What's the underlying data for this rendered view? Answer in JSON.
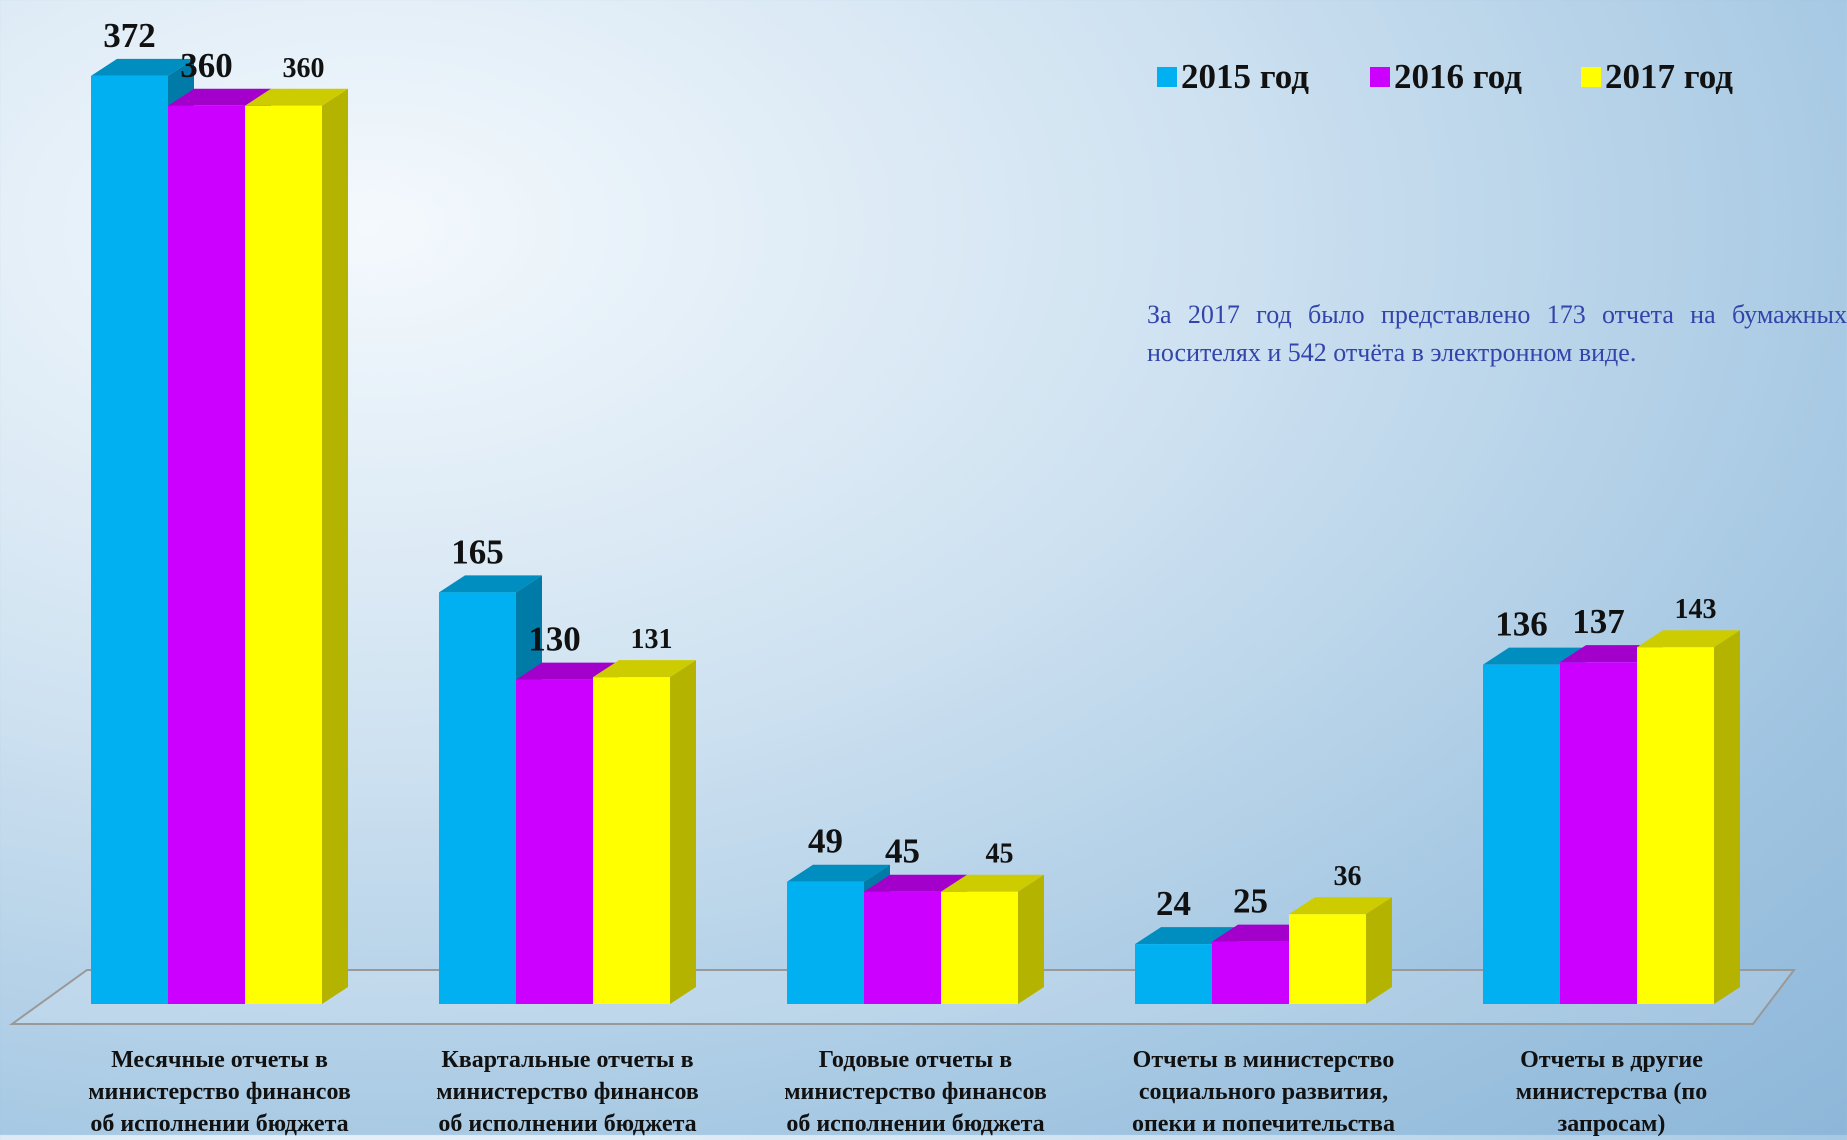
{
  "chart_data": {
    "type": "bar3d",
    "categories": [
      "Месячные отчеты в\nминистерство финансов\nоб исполнении бюджета",
      "Квартальные отчеты в\nминистерство финансов\nоб исполнении бюджета",
      "Годовые  отчеты в\nминистерство финансов\nоб исполнении бюджета",
      "Отчеты в министерство\nсоциального развития,\nопеки и попечительства",
      "Отчеты в другие\nминистерства (по\nзапросам)"
    ],
    "series": [
      {
        "name": "2015 год",
        "color": "#00b0f0",
        "values": [
          372,
          165,
          49,
          24,
          136
        ]
      },
      {
        "name": "2016 год",
        "color": "#cc00ff",
        "values": [
          360,
          130,
          45,
          25,
          137
        ]
      },
      {
        "name": "2017 год",
        "color": "#ffff00",
        "values": [
          360,
          131,
          45,
          36,
          143
        ]
      }
    ],
    "ylim": [
      0,
      400
    ],
    "legend": "top-right",
    "annotation": "За 2017 год было представлено 173 отчета на бумажных носителях и  542  отчёта в электронном виде."
  }
}
